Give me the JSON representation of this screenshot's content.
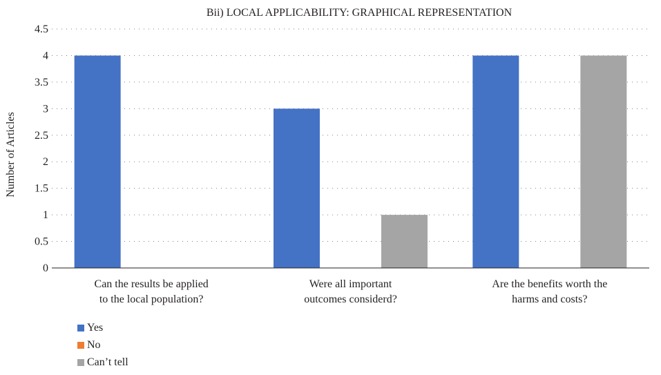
{
  "chart_data": {
    "type": "bar",
    "title": "Bii) LOCAL APPLICABILITY: GRAPHICAL REPRESENTATION",
    "xlabel": "",
    "ylabel": "Number of Articles",
    "ylim": [
      0,
      4.5
    ],
    "yticks": [
      "0",
      "0.5",
      "1",
      "1.5",
      "2",
      "2.5",
      "3",
      "3.5",
      "4",
      "4.5"
    ],
    "grid": true,
    "legend_position": "bottom-left",
    "categories": [
      [
        "Can the results be applied",
        "to the local population?"
      ],
      [
        "Were all important",
        "outcomes considerd?"
      ],
      [
        "Are the benefits worth the",
        "harms and costs?"
      ]
    ],
    "series": [
      {
        "name": "Yes",
        "color": "#4472c4",
        "values": [
          4,
          3,
          4
        ]
      },
      {
        "name": "No",
        "color": "#ed7d31",
        "values": [
          0,
          0,
          0
        ]
      },
      {
        "name": "Can’t tell",
        "color": "#a5a5a5",
        "values": [
          0,
          1,
          4
        ]
      }
    ]
  }
}
